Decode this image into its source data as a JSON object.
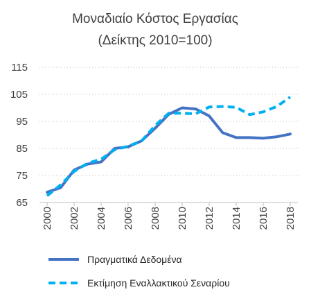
{
  "chart_data": {
    "type": "line",
    "title": [
      "Μοναδιαίο Κόστος Εργασίας",
      "(Δείκτης 2010=100)"
    ],
    "xlabel": "",
    "ylabel": "",
    "ylim": [
      65,
      115
    ],
    "yticks": [
      65,
      75,
      85,
      95,
      105,
      115
    ],
    "xticks": [
      "2000",
      "2002",
      "2004",
      "2006",
      "2008",
      "2010",
      "2012",
      "2014",
      "2016",
      "2018"
    ],
    "x": [
      2000,
      2001,
      2002,
      2003,
      2004,
      2005,
      2006,
      2007,
      2008,
      2009,
      2010,
      2011,
      2012,
      2013,
      2014,
      2015,
      2016,
      2017,
      2018
    ],
    "grid": "horizontal-dotted",
    "legend_position": "bottom",
    "series": [
      {
        "name": "Πραγματικά Δεδομένα",
        "color": "#4472c4",
        "style": "solid",
        "values": [
          68.8,
          70.5,
          77.0,
          79.2,
          80.0,
          85.0,
          85.6,
          87.8,
          92.5,
          97.6,
          100.0,
          99.6,
          97.0,
          90.8,
          89.0,
          89.0,
          88.8,
          89.3,
          90.3
        ]
      },
      {
        "name": "Εκτίμηση Εναλλακτικού Σεναρίου",
        "color": "#00b0f0",
        "style": "dashed",
        "values": [
          67.5,
          71.5,
          76.5,
          79.5,
          81.0,
          84.5,
          85.8,
          87.8,
          93.5,
          98.0,
          98.0,
          97.8,
          100.3,
          100.5,
          100.2,
          97.5,
          98.5,
          100.5,
          104.0
        ]
      }
    ]
  }
}
